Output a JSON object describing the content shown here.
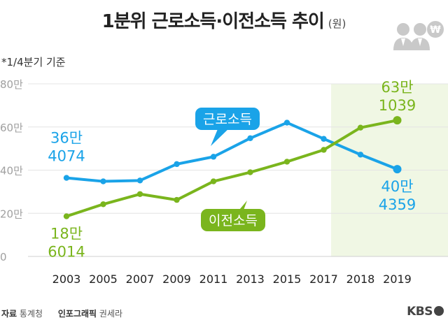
{
  "header": {
    "title": "1분위 근로소득·이전소득 추이",
    "unit": "(원)",
    "note": "*1/4분기 기준"
  },
  "footer": {
    "source_label": "자료",
    "source": "통계청",
    "credit_label": "인포그래픽",
    "credit": "권세라",
    "brand": "KBS"
  },
  "icons": {
    "people": "people-with-won-icon",
    "won_symbol": "₩"
  },
  "colors": {
    "labor": "#1aa3e8",
    "transfer": "#7ab51d",
    "highlight_bg": "#f0f7e4",
    "grid": "#e4e4e4",
    "tick": "#a0a0a0"
  },
  "chart_data": {
    "type": "line",
    "categories": [
      "2003",
      "2005",
      "2007",
      "2009",
      "2011",
      "2013",
      "2015",
      "2017",
      "2018",
      "2019"
    ],
    "y_tick_labels": [
      "0",
      "20만",
      "40만",
      "60만",
      "80만"
    ],
    "ylim": [
      0,
      800000
    ],
    "highlighted_categories": [
      "2018",
      "2019"
    ],
    "grid": true,
    "series": [
      {
        "name": "근로소득",
        "color": "#1aa3e8",
        "values": [
          364074,
          348000,
          352000,
          428000,
          462000,
          548000,
          620000,
          545000,
          472000,
          404359
        ],
        "start_label": [
          "36만",
          "4074"
        ],
        "end_label": [
          "40만",
          "4359"
        ]
      },
      {
        "name": "이전소득",
        "color": "#7ab51d",
        "values": [
          186014,
          242000,
          289000,
          262000,
          348000,
          390000,
          439000,
          494000,
          597000,
          631039
        ],
        "start_label": [
          "18만",
          "6014"
        ],
        "end_label": [
          "63만",
          "1039"
        ]
      }
    ]
  }
}
